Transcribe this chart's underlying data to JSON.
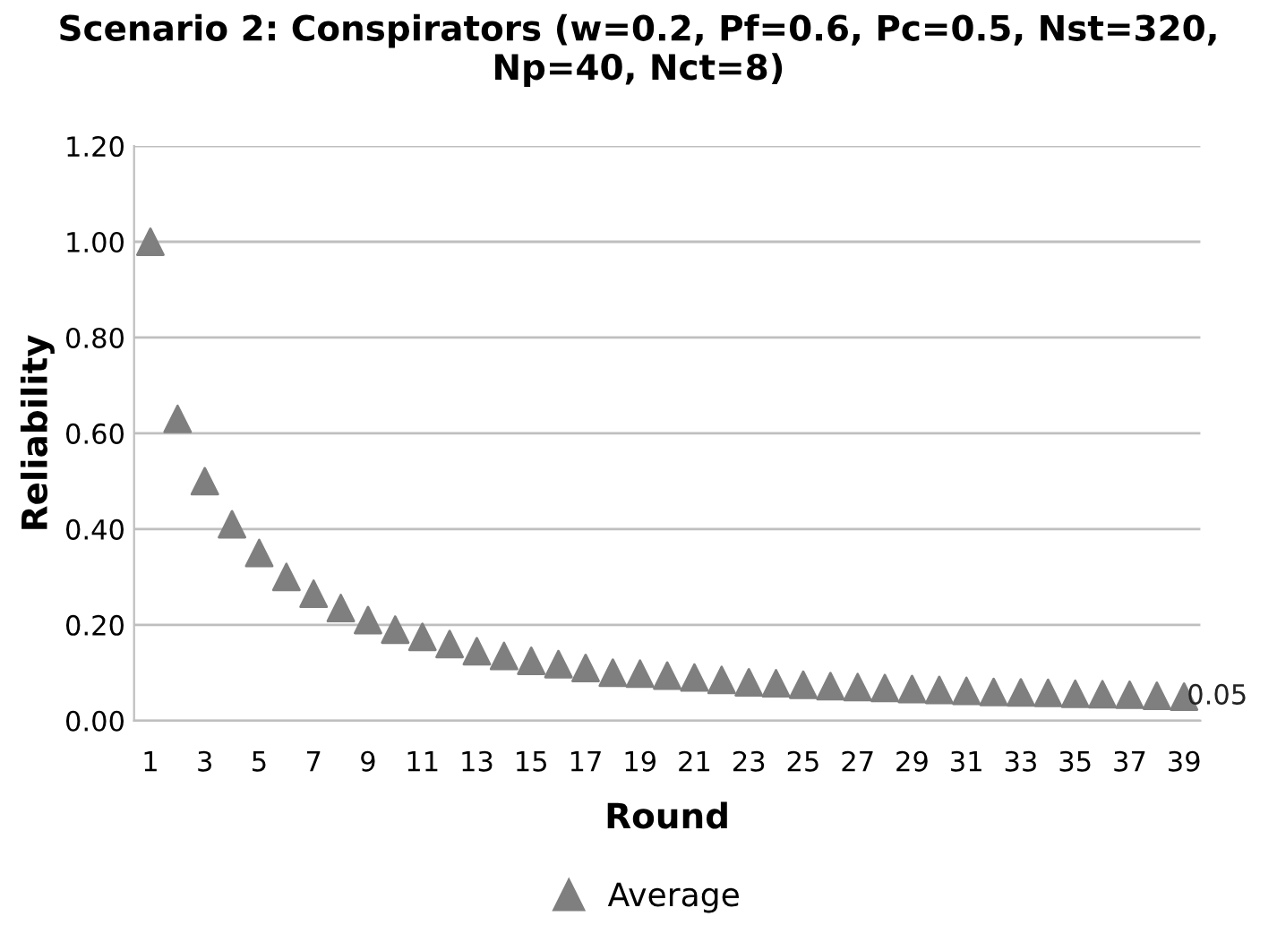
{
  "chart_data": {
    "type": "scatter",
    "title": "Scenario 2: Conspirators (w=0.2, Pf=0.6, Pc=0.5, Nst=320, Np=40, Nct=8)",
    "xlabel": "Round",
    "ylabel": "Reliability",
    "categories": [
      "1",
      null,
      "3",
      null,
      "5",
      null,
      "7",
      null,
      "9",
      null,
      "11",
      null,
      "13",
      null,
      "15",
      null,
      "17",
      null,
      "19",
      null,
      "21",
      null,
      "23",
      null,
      "25",
      null,
      "27",
      null,
      "29",
      null,
      "31",
      null,
      "33",
      null,
      "35",
      null,
      "37",
      null,
      "39"
    ],
    "series": [
      {
        "name": "Average",
        "color": "#7f7f7f",
        "values": [
          1.0,
          0.63,
          0.5,
          0.41,
          0.35,
          0.3,
          0.265,
          0.235,
          0.21,
          0.19,
          0.175,
          0.16,
          0.145,
          0.135,
          0.125,
          0.118,
          0.11,
          0.1,
          0.098,
          0.094,
          0.09,
          0.085,
          0.08,
          0.078,
          0.075,
          0.072,
          0.07,
          0.068,
          0.066,
          0.064,
          0.062,
          0.06,
          0.059,
          0.058,
          0.056,
          0.055,
          0.054,
          0.052,
          0.05
        ],
        "value_labels": [
          null,
          null,
          null,
          null,
          null,
          null,
          null,
          null,
          null,
          null,
          null,
          null,
          null,
          null,
          null,
          null,
          null,
          null,
          null,
          null,
          null,
          null,
          null,
          null,
          null,
          null,
          null,
          null,
          null,
          null,
          null,
          null,
          null,
          null,
          null,
          null,
          null,
          null,
          "0.05"
        ]
      }
    ],
    "ylim": [
      0,
      1.2
    ],
    "yticks": [
      {
        "value": 0,
        "label": "0.00"
      },
      {
        "value": 0.2,
        "label": "0.20"
      },
      {
        "value": 0.4,
        "label": "0.40"
      },
      {
        "value": 0.6,
        "label": "0.60"
      },
      {
        "value": 0.8,
        "label": "0.80"
      },
      {
        "value": 1.0,
        "label": "1.00"
      },
      {
        "value": 1.2,
        "label": "1.20"
      }
    ],
    "grid": "y",
    "legend": "bottom",
    "marker": "triangle"
  }
}
